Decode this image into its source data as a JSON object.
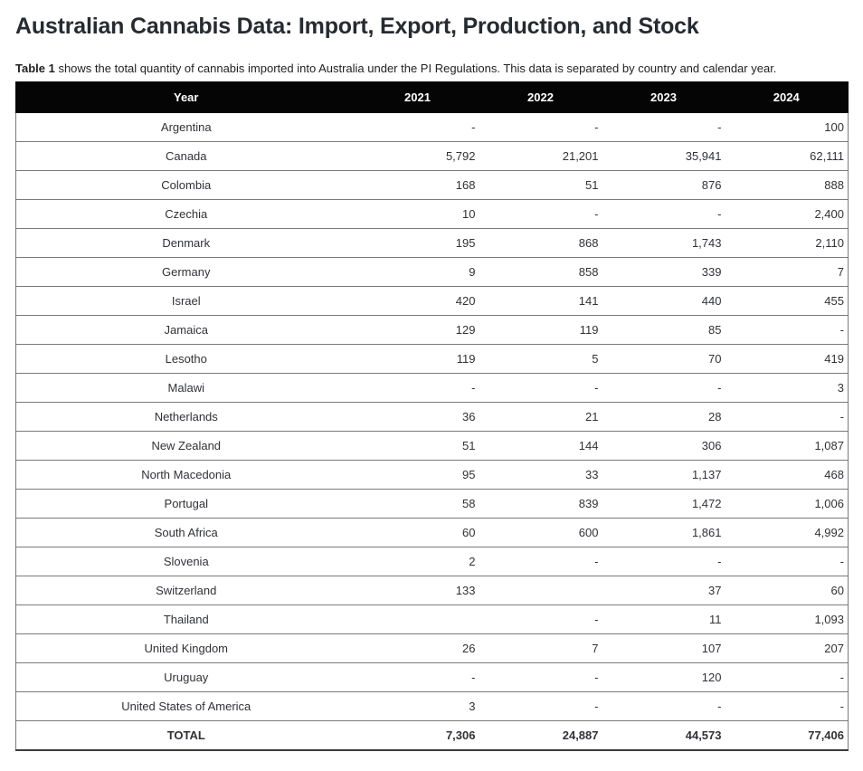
{
  "page": {
    "title": "Australian Cannabis Data: Import, Export, Production, and Stock",
    "caption_bold": "Table 1",
    "caption_rest": " shows the total quantity of cannabis imported into Australia under the PI Regulations. This data is separated by country and calendar year."
  },
  "colors": {
    "header_bg": "#050505",
    "header_text": "#ffffff",
    "row_border": "#7a7a7a",
    "body_text": "#303237",
    "title_text": "#262b31"
  },
  "table": {
    "header": [
      "Year",
      "2021",
      "2022",
      "2023",
      "2024"
    ],
    "rows": [
      {
        "country": "Argentina",
        "values": [
          "-",
          "-",
          "-",
          "100"
        ]
      },
      {
        "country": "Canada",
        "values": [
          "5,792",
          "21,201",
          "35,941",
          "62,111"
        ]
      },
      {
        "country": "Colombia",
        "values": [
          "168",
          "51",
          "876",
          "888"
        ]
      },
      {
        "country": "Czechia",
        "values": [
          "10",
          "-",
          "-",
          "2,400"
        ]
      },
      {
        "country": "Denmark",
        "values": [
          "195",
          "868",
          "1,743",
          "2,110"
        ]
      },
      {
        "country": "Germany",
        "values": [
          "9",
          "858",
          "339",
          "7"
        ]
      },
      {
        "country": "Israel",
        "values": [
          "420",
          "141",
          "440",
          "455"
        ]
      },
      {
        "country": "Jamaica",
        "values": [
          "129",
          "119",
          "85",
          "-"
        ]
      },
      {
        "country": "Lesotho",
        "values": [
          "119",
          "5",
          "70",
          "419"
        ]
      },
      {
        "country": "Malawi",
        "values": [
          "-",
          "-",
          "-",
          "3"
        ]
      },
      {
        "country": "Netherlands",
        "values": [
          "36",
          "21",
          "28",
          "-"
        ]
      },
      {
        "country": "New Zealand",
        "values": [
          "51",
          "144",
          "306",
          "1,087"
        ]
      },
      {
        "country": "North Macedonia",
        "values": [
          "95",
          "33",
          "1,137",
          "468"
        ]
      },
      {
        "country": "Portugal",
        "values": [
          "58",
          "839",
          "1,472",
          "1,006"
        ]
      },
      {
        "country": "South Africa",
        "values": [
          "60",
          "600",
          "1,861",
          "4,992"
        ]
      },
      {
        "country": "Slovenia",
        "values": [
          "2",
          "-",
          "-",
          "-"
        ]
      },
      {
        "country": "Switzerland",
        "values": [
          "133",
          "",
          "37",
          "60"
        ]
      },
      {
        "country": "Thailand",
        "values": [
          "",
          "-",
          "11",
          "1,093"
        ]
      },
      {
        "country": "United Kingdom",
        "values": [
          "26",
          "7",
          "107",
          "207"
        ]
      },
      {
        "country": "Uruguay",
        "values": [
          "-",
          "-",
          "120",
          "-"
        ]
      },
      {
        "country": "United States of America",
        "values": [
          "3",
          "-",
          "-",
          "-"
        ]
      }
    ],
    "total": {
      "label": "TOTAL",
      "values": [
        "7,306",
        "24,887",
        "44,573",
        "77,406"
      ]
    }
  },
  "chart_data": {
    "type": "table",
    "title": "Australian Cannabis Data: Import, Export, Production, and Stock",
    "columns": [
      "Year",
      "2021",
      "2022",
      "2023",
      "2024"
    ],
    "rows": [
      [
        "Argentina",
        "-",
        "-",
        "-",
        "100"
      ],
      [
        "Canada",
        "5,792",
        "21,201",
        "35,941",
        "62,111"
      ],
      [
        "Colombia",
        "168",
        "51",
        "876",
        "888"
      ],
      [
        "Czechia",
        "10",
        "-",
        "-",
        "2,400"
      ],
      [
        "Denmark",
        "195",
        "868",
        "1,743",
        "2,110"
      ],
      [
        "Germany",
        "9",
        "858",
        "339",
        "7"
      ],
      [
        "Israel",
        "420",
        "141",
        "440",
        "455"
      ],
      [
        "Jamaica",
        "129",
        "119",
        "85",
        "-"
      ],
      [
        "Lesotho",
        "119",
        "5",
        "70",
        "419"
      ],
      [
        "Malawi",
        "-",
        "-",
        "-",
        "3"
      ],
      [
        "Netherlands",
        "36",
        "21",
        "28",
        "-"
      ],
      [
        "New Zealand",
        "51",
        "144",
        "306",
        "1,087"
      ],
      [
        "North Macedonia",
        "95",
        "33",
        "1,137",
        "468"
      ],
      [
        "Portugal",
        "58",
        "839",
        "1,472",
        "1,006"
      ],
      [
        "South Africa",
        "60",
        "600",
        "1,861",
        "4,992"
      ],
      [
        "Slovenia",
        "2",
        "-",
        "-",
        "-"
      ],
      [
        "Switzerland",
        "133",
        "",
        "37",
        "60"
      ],
      [
        "Thailand",
        "",
        "-",
        "11",
        "1,093"
      ],
      [
        "United Kingdom",
        "26",
        "7",
        "107",
        "207"
      ],
      [
        "Uruguay",
        "-",
        "-",
        "120",
        "-"
      ],
      [
        "United States of America",
        "3",
        "-",
        "-",
        "-"
      ],
      [
        "TOTAL",
        "7,306",
        "24,887",
        "44,573",
        "77,406"
      ]
    ]
  }
}
